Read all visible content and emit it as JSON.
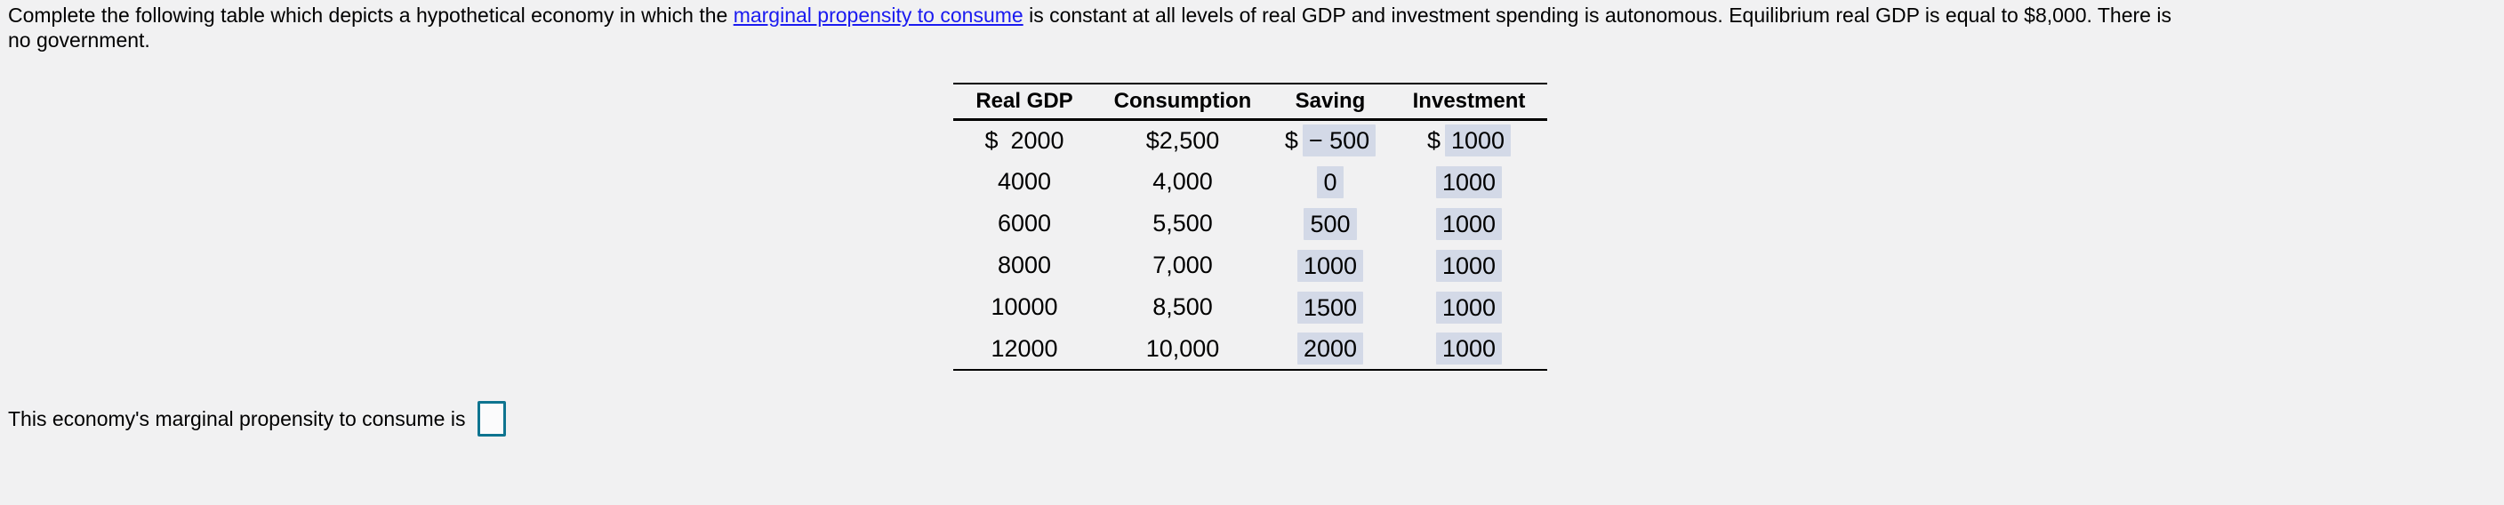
{
  "problem": {
    "line1_pre": "Complete the following table which depicts a hypothetical economy in which the ",
    "link_text": "marginal propensity to consume",
    "line1_post": " is constant at all levels of real GDP and investment spending is autonomous. Equilibrium real GDP is equal to $8,000. There is",
    "line2": "no government."
  },
  "table": {
    "headers": [
      "Real GDP",
      "Consumption",
      "Saving",
      "Investment"
    ],
    "rows": [
      {
        "real_gdp_prefix": "$",
        "real_gdp": "2000",
        "consumption": "$2,500",
        "saving_prefix": "$",
        "saving": "− 500",
        "investment_prefix": "$",
        "investment": "1000"
      },
      {
        "real_gdp": "4000",
        "consumption": "4,000",
        "saving": "0",
        "investment": "1000"
      },
      {
        "real_gdp": "6000",
        "consumption": "5,500",
        "saving": "500",
        "investment": "1000"
      },
      {
        "real_gdp": "8000",
        "consumption": "7,000",
        "saving": "1000",
        "investment": "1000"
      },
      {
        "real_gdp": "10000",
        "consumption": "8,500",
        "saving": "1500",
        "investment": "1000"
      },
      {
        "real_gdp": "12000",
        "consumption": "10,000",
        "saving": "2000",
        "investment": "1000"
      }
    ]
  },
  "question": {
    "text": "This economy's marginal propensity to consume is",
    "answer_value": ""
  },
  "colors": {
    "page_background": "#f1f1f2",
    "link_blue": "#1a1af0",
    "filled_cell_background": "#d3d9e7",
    "answer_box_border": "#0e7490",
    "table_rule": "#000000"
  }
}
